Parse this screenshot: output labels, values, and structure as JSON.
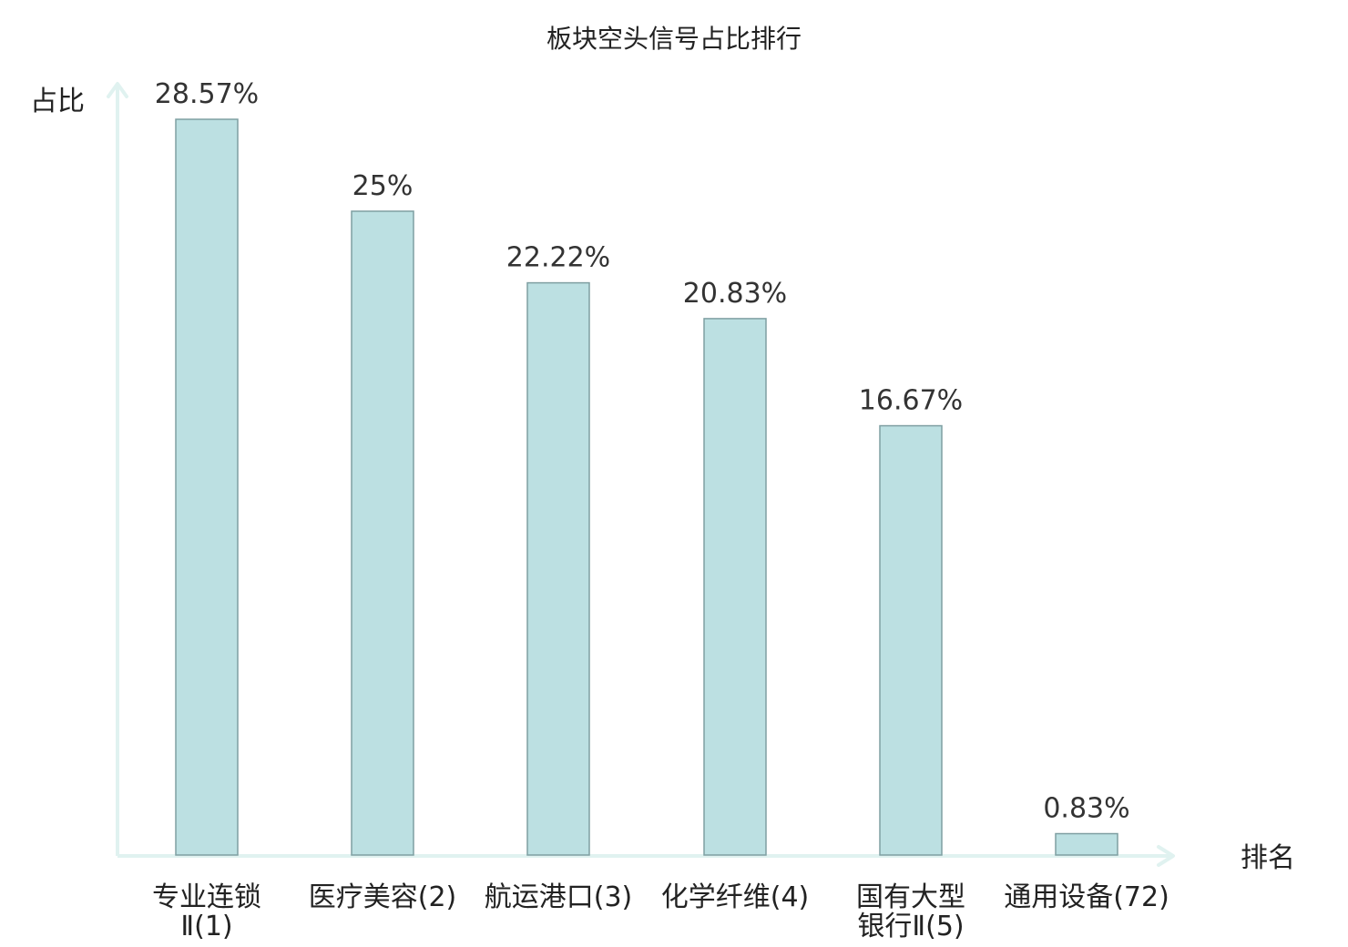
{
  "chart_data": {
    "type": "bar",
    "title": "板块空头信号占比排行",
    "ylabel": "占比",
    "xlabel": "排名",
    "ylim": [
      0,
      30
    ],
    "grid": false,
    "unit": "%",
    "categories": [
      [
        "专业连锁",
        "Ⅱ(1)"
      ],
      [
        "医疗美容(2)"
      ],
      [
        "航运港口(3)"
      ],
      [
        "化学纤维(4)"
      ],
      [
        "国有大型",
        "银行Ⅱ(5)"
      ],
      [
        "通用设备(72)"
      ]
    ],
    "value_labels": [
      "28.57%",
      "25%",
      "22.22%",
      "20.83%",
      "16.67%",
      "0.83%"
    ],
    "values": [
      28.57,
      25,
      22.22,
      20.83,
      16.67,
      0.83
    ],
    "highlight_index": 5
  },
  "colors": {
    "bar_fill": "#bce0e2",
    "bar_stroke": "#7f9fa2",
    "axis": "#e0f2f0",
    "highlight_label": "#e0141e",
    "text": "#222222"
  }
}
